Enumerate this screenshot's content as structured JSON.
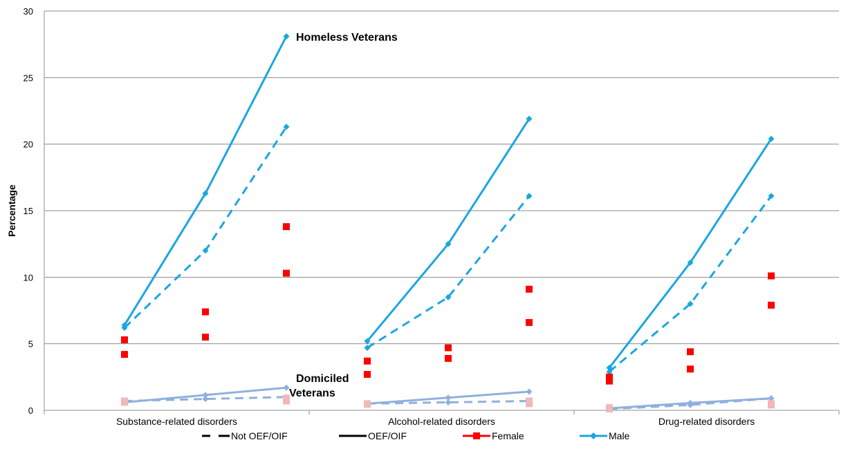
{
  "chart_data": {
    "type": "line",
    "ylabel": "Percentage",
    "ylim": [
      0,
      30
    ],
    "yticks": [
      0,
      5,
      10,
      15,
      20,
      25,
      30
    ],
    "grid": true,
    "legend_placement": "bottom",
    "categories": [
      "Substance-related disorders",
      "Alcohol-related disorders",
      "Drug-related disorders"
    ],
    "points_per_category": 3,
    "annotations": [
      "Homeless Veterans",
      "Domiciled Veterans"
    ],
    "legend": [
      {
        "label": "Not OEF/OIF",
        "style": "dashed",
        "color": "#000000"
      },
      {
        "label": "OEF/OIF",
        "style": "solid",
        "color": "#000000"
      },
      {
        "label": "Female",
        "style": "square",
        "color": "#ff0000"
      },
      {
        "label": "Male",
        "style": "diamond",
        "color": "#1aa6e0"
      }
    ],
    "series": [
      {
        "group": "Homeless Veterans",
        "sex": "Male",
        "cohort": "OEF/OIF",
        "values": [
          [
            6.4,
            16.3,
            28.1
          ],
          [
            5.2,
            12.5,
            21.9
          ],
          [
            3.2,
            11.1,
            20.4
          ]
        ]
      },
      {
        "group": "Homeless Veterans",
        "sex": "Male",
        "cohort": "Not OEF/OIF",
        "values": [
          [
            6.2,
            12.0,
            21.3
          ],
          [
            4.7,
            8.5,
            16.1
          ],
          [
            2.9,
            8.0,
            16.1
          ]
        ]
      },
      {
        "group": "Homeless Veterans",
        "sex": "Female",
        "cohort": "OEF/OIF",
        "values": [
          [
            5.3,
            7.4,
            13.8
          ],
          [
            3.7,
            4.7,
            9.1
          ],
          [
            2.5,
            4.4,
            10.1
          ]
        ]
      },
      {
        "group": "Homeless Veterans",
        "sex": "Female",
        "cohort": "Not OEF/OIF",
        "values": [
          [
            4.2,
            5.5,
            10.3
          ],
          [
            2.7,
            3.9,
            6.6
          ],
          [
            2.2,
            3.1,
            7.9
          ]
        ]
      },
      {
        "group": "Domiciled Veterans",
        "sex": "Male",
        "cohort": "OEF/OIF",
        "values": [
          [
            0.6,
            1.15,
            1.7
          ],
          [
            0.5,
            0.95,
            1.4
          ],
          [
            0.15,
            0.55,
            0.9
          ]
        ]
      },
      {
        "group": "Domiciled Veterans",
        "sex": "Male",
        "cohort": "Not OEF/OIF",
        "values": [
          [
            0.7,
            0.85,
            1.0
          ],
          [
            0.5,
            0.6,
            0.7
          ],
          [
            0.1,
            0.4,
            0.9
          ]
        ]
      },
      {
        "group": "Domiciled Veterans",
        "sex": "Female",
        "cohort": "OEF/OIF",
        "values": [
          [
            0.7,
            null,
            0.9
          ],
          [
            0.5,
            null,
            0.7
          ],
          [
            0.2,
            null,
            0.5
          ]
        ]
      },
      {
        "group": "Domiciled Veterans",
        "sex": "Female",
        "cohort": "Not OEF/OIF",
        "values": [
          [
            0.6,
            null,
            0.7
          ],
          [
            0.45,
            null,
            0.5
          ],
          [
            0.1,
            null,
            0.4
          ]
        ]
      }
    ],
    "colors": {
      "homeless_male": "#1aa6e0",
      "homeless_female": "#ff0000",
      "domiciled_male": "#8fb0df",
      "domiciled_female": "#f0b8b8",
      "grid": "#8c8c8c"
    }
  }
}
